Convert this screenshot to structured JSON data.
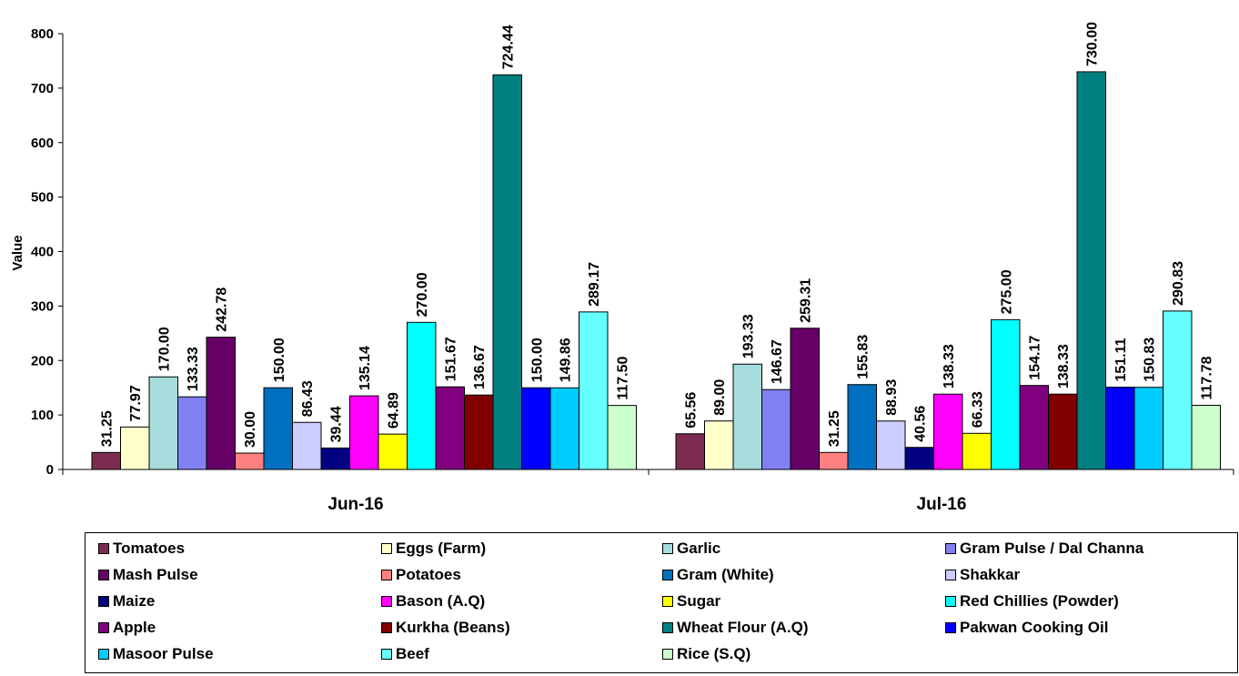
{
  "chart_data": {
    "type": "bar",
    "title": "",
    "xlabel": "",
    "ylabel": "Value",
    "ylim": [
      0,
      800
    ],
    "yticks": [
      "0",
      "100",
      "200",
      "300",
      "400",
      "500",
      "600",
      "700",
      "800"
    ],
    "categories": [
      "Jun-16",
      "Jul-16"
    ],
    "grid": false,
    "legend_position": "bottom",
    "series": [
      {
        "name": "Tomatoes",
        "color": "#7b2c50",
        "values": [
          31.25,
          65.56
        ],
        "labels": [
          "31.25",
          "65.56"
        ]
      },
      {
        "name": "Eggs (Farm)",
        "color": "#ffffcc",
        "values": [
          77.97,
          89.0
        ],
        "labels": [
          "77.97",
          "89.00"
        ]
      },
      {
        "name": "Garlic",
        "color": "#a6dcdc",
        "values": [
          170.0,
          193.33
        ],
        "labels": [
          "170.00",
          "193.33"
        ]
      },
      {
        "name": "Gram Pulse / Dal Channa",
        "color": "#8080f0",
        "values": [
          133.33,
          146.67
        ],
        "labels": [
          "133.33",
          "146.67"
        ]
      },
      {
        "name": "Mash Pulse",
        "color": "#660066",
        "values": [
          242.78,
          259.31
        ],
        "labels": [
          "242.78",
          "259.31"
        ]
      },
      {
        "name": "Potatoes",
        "color": "#ff8080",
        "values": [
          30.0,
          31.25
        ],
        "labels": [
          "30.00",
          "31.25"
        ]
      },
      {
        "name": "Gram (White)",
        "color": "#0070c0",
        "values": [
          150.0,
          155.83
        ],
        "labels": [
          "150.00",
          "155.83"
        ]
      },
      {
        "name": "Shakkar",
        "color": "#ccccff",
        "values": [
          86.43,
          88.93
        ],
        "labels": [
          "86.43",
          "88.93"
        ]
      },
      {
        "name": "Maize",
        "color": "#000080",
        "values": [
          39.44,
          40.56
        ],
        "labels": [
          "39.44",
          "40.56"
        ]
      },
      {
        "name": "Bason (A.Q)",
        "color": "#ff00ff",
        "values": [
          135.14,
          138.33
        ],
        "labels": [
          "135.14",
          "138.33"
        ]
      },
      {
        "name": "Sugar",
        "color": "#ffff00",
        "values": [
          64.89,
          66.33
        ],
        "labels": [
          "64.89",
          "66.33"
        ]
      },
      {
        "name": "Red Chillies (Powder)",
        "color": "#00ffff",
        "values": [
          270.0,
          275.0
        ],
        "labels": [
          "270.00",
          "275.00"
        ]
      },
      {
        "name": "Apple",
        "color": "#800080",
        "values": [
          151.67,
          154.17
        ],
        "labels": [
          "151.67",
          "154.17"
        ]
      },
      {
        "name": "Kurkha (Beans)",
        "color": "#800000",
        "values": [
          136.67,
          138.33
        ],
        "labels": [
          "136.67",
          "138.33"
        ]
      },
      {
        "name": "Wheat Flour (A.Q)",
        "color": "#008080",
        "values": [
          724.44,
          730.0
        ],
        "labels": [
          "724.44",
          "730.00"
        ]
      },
      {
        "name": "Pakwan Cooking Oil",
        "color": "#0000ff",
        "values": [
          150.0,
          151.11
        ],
        "labels": [
          "150.00",
          "151.11"
        ]
      },
      {
        "name": "Masoor Pulse",
        "color": "#00ccff",
        "values": [
          149.86,
          150.83
        ],
        "labels": [
          "149.86",
          "150.83"
        ]
      },
      {
        "name": "Beef",
        "color": "#66ffff",
        "values": [
          289.17,
          290.83
        ],
        "labels": [
          "289.17",
          "290.83"
        ]
      },
      {
        "name": "Rice (S.Q)",
        "color": "#ccffcc",
        "values": [
          117.5,
          117.78
        ],
        "labels": [
          "117.50",
          "117.78"
        ]
      }
    ]
  }
}
